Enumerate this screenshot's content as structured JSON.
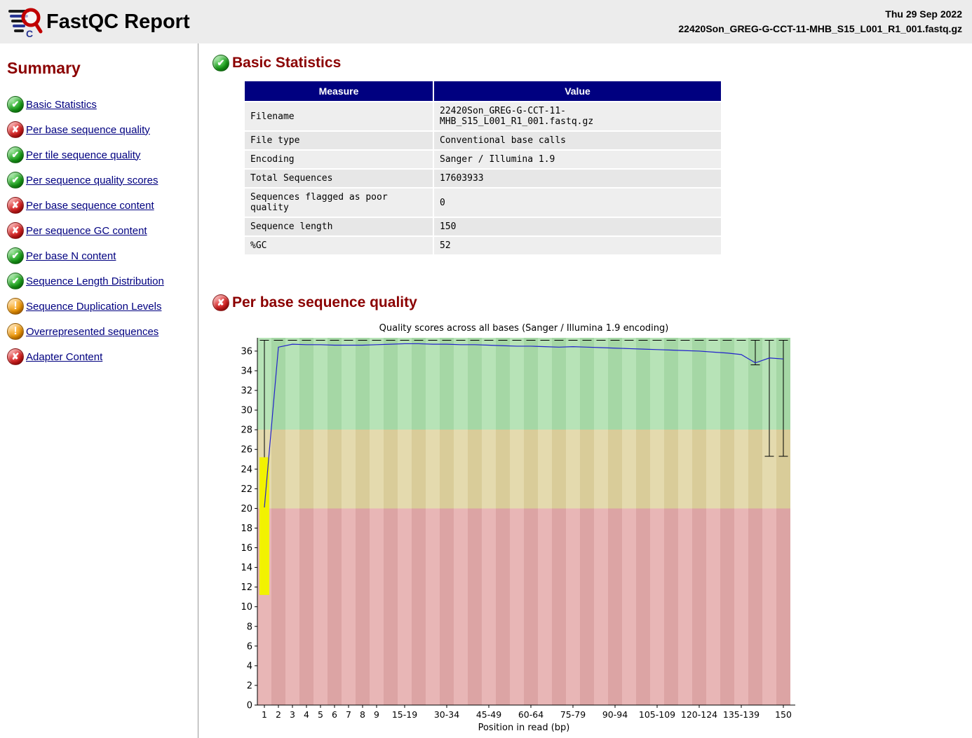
{
  "header": {
    "title": "FastQC Report",
    "date": "Thu 29 Sep 2022",
    "filename": "22420Son_GREG-G-CCT-11-MHB_S15_L001_R1_001.fastq.gz"
  },
  "sidebar": {
    "title": "Summary",
    "items": [
      {
        "label": "Basic Statistics",
        "status": "pass"
      },
      {
        "label": "Per base sequence quality",
        "status": "fail"
      },
      {
        "label": "Per tile sequence quality",
        "status": "pass"
      },
      {
        "label": "Per sequence quality scores",
        "status": "pass"
      },
      {
        "label": "Per base sequence content",
        "status": "fail"
      },
      {
        "label": "Per sequence GC content",
        "status": "fail"
      },
      {
        "label": "Per base N content",
        "status": "pass"
      },
      {
        "label": "Sequence Length Distribution",
        "status": "pass"
      },
      {
        "label": "Sequence Duplication Levels",
        "status": "warn"
      },
      {
        "label": "Overrepresented sequences",
        "status": "warn"
      },
      {
        "label": "Adapter Content",
        "status": "fail"
      }
    ]
  },
  "basic_statistics": {
    "title": "Basic Statistics",
    "status": "pass",
    "table": {
      "headers": [
        "Measure",
        "Value"
      ],
      "rows": [
        [
          "Filename",
          "22420Son_GREG-G-CCT-11-MHB_S15_L001_R1_001.fastq.gz"
        ],
        [
          "File type",
          "Conventional base calls"
        ],
        [
          "Encoding",
          "Sanger / Illumina 1.9"
        ],
        [
          "Total Sequences",
          "17603933"
        ],
        [
          "Sequences flagged as poor quality",
          "0"
        ],
        [
          "Sequence length",
          "150"
        ],
        [
          "%GC",
          "52"
        ]
      ]
    }
  },
  "per_base_quality": {
    "title": "Per base sequence quality",
    "status": "fail",
    "chart_data": {
      "type": "line",
      "title": "Quality scores across all bases (Sanger / Illumina 1.9 encoding)",
      "xlabel": "Position in read (bp)",
      "ylim": [
        0,
        37.35
      ],
      "y_ticks": [
        0,
        2,
        4,
        6,
        8,
        10,
        12,
        14,
        16,
        18,
        20,
        22,
        24,
        26,
        28,
        30,
        32,
        34,
        36
      ],
      "x_categories": [
        "1",
        "2",
        "3",
        "4",
        "5",
        "6",
        "7",
        "8",
        "9",
        "10-14",
        "15-19",
        "20-24",
        "25-29",
        "30-34",
        "35-39",
        "40-44",
        "45-49",
        "50-54",
        "55-59",
        "60-64",
        "65-69",
        "70-74",
        "75-79",
        "80-84",
        "85-89",
        "90-94",
        "95-99",
        "100-104",
        "105-109",
        "110-114",
        "115-119",
        "120-124",
        "125-129",
        "130-134",
        "135-139",
        "140-144",
        "145-149",
        "150"
      ],
      "x_ticks_shown": [
        "1",
        "2",
        "3",
        "4",
        "5",
        "6",
        "7",
        "8",
        "9",
        "15-19",
        "30-34",
        "45-49",
        "60-64",
        "75-79",
        "90-94",
        "105-109",
        "120-124",
        "135-139",
        "150"
      ],
      "zones": [
        {
          "name": "fail",
          "from": 0,
          "to": 20,
          "color": "#e8b6b6",
          "alt_color": "#dca4a4"
        },
        {
          "name": "warn",
          "from": 20,
          "to": 28,
          "color": "#e4daae",
          "alt_color": "#d9cc99"
        },
        {
          "name": "pass",
          "from": 28,
          "to": 37.35,
          "color": "#b7e3b7",
          "alt_color": "#a5d7a5"
        }
      ],
      "mean_series": [
        20.1,
        36.4,
        36.7,
        36.65,
        36.65,
        36.6,
        36.6,
        36.6,
        36.65,
        36.7,
        36.75,
        36.75,
        36.7,
        36.7,
        36.65,
        36.65,
        36.6,
        36.55,
        36.5,
        36.5,
        36.45,
        36.4,
        36.45,
        36.4,
        36.35,
        36.3,
        36.25,
        36.2,
        36.15,
        36.1,
        36.05,
        36.0,
        35.9,
        35.8,
        35.65,
        34.8,
        35.3,
        35.2
      ],
      "upper_whisker_cap": 37.1,
      "box_first_position": {
        "x": "1",
        "low": 11.2,
        "high": 25.2,
        "color": "#f2f200"
      },
      "end_whiskers": [
        {
          "x": "140-144",
          "top": 37.1,
          "bottom": 34.6
        },
        {
          "x": "145-149",
          "top": 37.1,
          "bottom": 25.3
        },
        {
          "x": "150",
          "top": 37.1,
          "bottom": 25.3
        }
      ],
      "line_color": "#2222cc"
    }
  }
}
